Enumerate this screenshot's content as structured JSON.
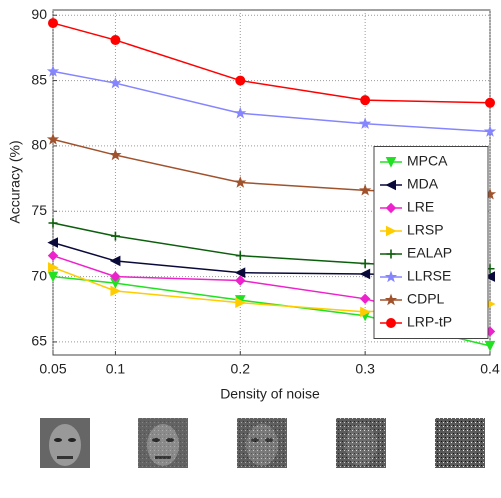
{
  "chart_data": {
    "type": "line",
    "x_label": "Density of noise",
    "y_label": "Accuracy (%)",
    "x": [
      0.05,
      0.1,
      0.2,
      0.3,
      0.4
    ],
    "xlim": [
      0.05,
      0.4
    ],
    "xticks": [
      0.05,
      0.1,
      0.2,
      0.3,
      0.4
    ],
    "ylim": [
      64,
      90.4
    ],
    "yticks": [
      65,
      70,
      75,
      80,
      85,
      90
    ],
    "grid": true,
    "legend_position": "right",
    "series": [
      {
        "name": "MPCA",
        "color": "#22e022",
        "marker": "triangle-down",
        "values": [
          70.0,
          69.5,
          68.2,
          67.0,
          64.7
        ]
      },
      {
        "name": "MDA",
        "color": "#0a0a3a",
        "marker": "triangle-left",
        "values": [
          72.6,
          71.2,
          70.3,
          70.2,
          70.0
        ]
      },
      {
        "name": "LRE",
        "color": "#ee22cc",
        "marker": "diamond",
        "values": [
          71.6,
          70.0,
          69.7,
          68.3,
          65.8
        ]
      },
      {
        "name": "LRSP",
        "color": "#ffcc00",
        "marker": "triangle-right",
        "values": [
          70.7,
          68.9,
          68.0,
          67.3,
          67.9
        ]
      },
      {
        "name": "EALAP",
        "color": "#0b5e0b",
        "marker": "plus",
        "values": [
          74.1,
          73.1,
          71.6,
          71.0,
          70.6
        ]
      },
      {
        "name": "LLRSE",
        "color": "#8585ff",
        "marker": "star",
        "values": [
          85.7,
          84.8,
          82.5,
          81.7,
          81.1
        ]
      },
      {
        "name": "CDPL",
        "color": "#a0522d",
        "marker": "star",
        "values": [
          80.5,
          79.3,
          77.2,
          76.6,
          76.3
        ]
      },
      {
        "name": "LRP-tP",
        "color": "#ff0000",
        "marker": "circle",
        "values": [
          89.4,
          88.1,
          85.0,
          83.5,
          83.3
        ]
      }
    ]
  }
}
